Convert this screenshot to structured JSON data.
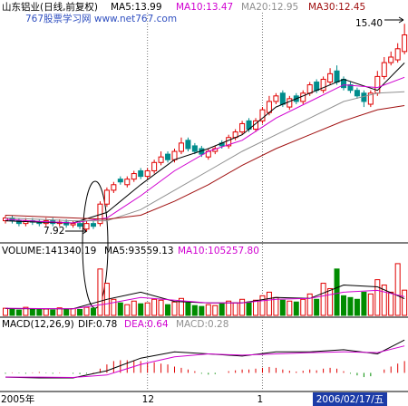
{
  "watermark": "767股票学习网 www.net767.com",
  "cursor_date": "2006/02/17/五",
  "chart_data": [
    {
      "type": "candlestick",
      "title": "山东铝业(日线,前复权)",
      "categories": [
        "2005年",
        null,
        null,
        null,
        null,
        null,
        null,
        null,
        null,
        null,
        null,
        null,
        null,
        null,
        null,
        null,
        null,
        null,
        null,
        null,
        null,
        "12",
        null,
        null,
        null,
        null,
        null,
        null,
        null,
        null,
        null,
        null,
        null,
        null,
        null,
        null,
        null,
        null,
        "1",
        null,
        null,
        null,
        null,
        null,
        null,
        null,
        null,
        null,
        null,
        null,
        null,
        null,
        null,
        null,
        null,
        null,
        null,
        null,
        null,
        null
      ],
      "open": [
        8.3,
        8.4,
        8.3,
        8.2,
        8.3,
        8.25,
        8.2,
        8.3,
        8.2,
        8.25,
        8.15,
        8.2,
        8.0,
        8.2,
        8.2,
        8.9,
        9.4,
        9.8,
        9.6,
        9.8,
        10.1,
        9.9,
        10.1,
        10.4,
        10.7,
        10.5,
        10.8,
        11.2,
        11.0,
        10.9,
        10.6,
        10.8,
        11.1,
        11.0,
        11.3,
        11.5,
        11.9,
        11.6,
        11.9,
        12.2,
        12.6,
        12.9,
        12.4,
        12.8,
        12.6,
        12.9,
        13.3,
        13.0,
        13.3,
        13.7,
        13.4,
        13.2,
        13.0,
        12.9,
        12.5,
        12.9,
        13.5,
        14.0,
        14.1,
        14.4
      ],
      "high": [
        8.5,
        8.5,
        8.4,
        8.4,
        8.4,
        8.35,
        8.4,
        8.4,
        8.35,
        8.35,
        8.3,
        8.3,
        8.3,
        8.3,
        9.0,
        9.5,
        9.7,
        9.9,
        9.9,
        10.1,
        10.2,
        10.2,
        10.5,
        10.8,
        10.8,
        10.9,
        11.3,
        11.3,
        11.1,
        11.0,
        10.9,
        11.0,
        11.2,
        11.4,
        11.6,
        11.9,
        12.0,
        12.0,
        12.4,
        12.8,
        12.9,
        13.0,
        12.8,
        12.9,
        13.0,
        13.3,
        13.4,
        13.5,
        13.8,
        13.9,
        13.5,
        13.3,
        13.1,
        13.0,
        13.0,
        13.7,
        14.2,
        14.4,
        14.7,
        15.4
      ],
      "low": [
        8.2,
        8.2,
        8.1,
        8.1,
        8.15,
        8.1,
        8.1,
        8.1,
        8.1,
        8.05,
        8.05,
        8.0,
        7.92,
        8.0,
        8.1,
        8.8,
        9.3,
        9.6,
        9.5,
        9.7,
        9.8,
        9.8,
        10.0,
        10.3,
        10.4,
        10.4,
        10.7,
        10.8,
        10.7,
        10.6,
        10.5,
        10.7,
        10.9,
        10.9,
        11.2,
        11.4,
        11.5,
        11.5,
        11.8,
        12.1,
        12.5,
        12.4,
        12.3,
        12.5,
        12.5,
        12.8,
        12.9,
        12.9,
        13.2,
        13.2,
        13.0,
        12.9,
        12.7,
        12.4,
        12.4,
        12.8,
        13.4,
        13.9,
        14.0,
        14.3
      ],
      "close": [
        8.4,
        8.3,
        8.2,
        8.3,
        8.25,
        8.2,
        8.3,
        8.2,
        8.25,
        8.15,
        8.2,
        8.1,
        8.2,
        8.1,
        8.9,
        9.4,
        9.6,
        9.7,
        9.8,
        10.0,
        9.9,
        10.1,
        10.4,
        10.6,
        10.5,
        10.8,
        11.1,
        10.9,
        10.8,
        10.7,
        10.8,
        10.9,
        11.0,
        11.3,
        11.5,
        11.8,
        11.6,
        11.9,
        12.3,
        12.6,
        12.8,
        12.5,
        12.7,
        12.6,
        12.9,
        13.2,
        13.0,
        13.4,
        13.6,
        13.3,
        13.1,
        13.0,
        12.8,
        12.6,
        12.9,
        13.5,
        14.0,
        14.2,
        14.5,
        15.0
      ],
      "up_color": "#e00000",
      "down_color": "#008c8c",
      "lines": [
        {
          "name": "MA5:13.99",
          "color": "#000000",
          "x": [
            0,
            5,
            10,
            15,
            20,
            25,
            30,
            35,
            40,
            45,
            50,
            55,
            59
          ],
          "values": [
            8.3,
            8.25,
            8.22,
            8.6,
            9.6,
            10.5,
            10.9,
            11.4,
            12.4,
            12.9,
            13.4,
            13.0,
            13.99
          ]
        },
        {
          "name": "MA10:13.47",
          "color": "#d000d0",
          "x": [
            0,
            5,
            10,
            15,
            20,
            25,
            30,
            35,
            40,
            45,
            50,
            55,
            59
          ],
          "values": [
            8.35,
            8.28,
            8.22,
            8.4,
            9.2,
            10.1,
            10.8,
            11.2,
            12.0,
            12.6,
            13.2,
            13.1,
            13.47
          ]
        },
        {
          "name": "MA20:12.95",
          "color": "#909090",
          "x": [
            0,
            5,
            10,
            15,
            20,
            25,
            30,
            35,
            40,
            45,
            50,
            55,
            59
          ],
          "values": [
            8.4,
            8.35,
            8.3,
            8.3,
            8.7,
            9.4,
            10.1,
            10.8,
            11.4,
            12.0,
            12.6,
            12.9,
            12.95
          ]
        },
        {
          "name": "MA30:12.45",
          "color": "#a01010",
          "x": [
            0,
            5,
            10,
            15,
            20,
            25,
            30,
            35,
            40,
            45,
            50,
            55,
            59
          ],
          "values": [
            8.5,
            8.45,
            8.4,
            8.35,
            8.5,
            9.0,
            9.6,
            10.3,
            10.9,
            11.4,
            11.9,
            12.3,
            12.45
          ]
        }
      ],
      "annotations": [
        "15.40",
        "7.92"
      ],
      "ylim": [
        7.6,
        15.8
      ]
    },
    {
      "type": "volume",
      "title": "VOLUME:141340.19",
      "values": [
        40000,
        35000,
        30000,
        45000,
        38000,
        32000,
        36000,
        30000,
        42000,
        35000,
        38000,
        33000,
        45000,
        40000,
        260000,
        180000,
        90000,
        70000,
        60000,
        80000,
        65000,
        70000,
        90000,
        85000,
        60000,
        75000,
        95000,
        70000,
        55000,
        50000,
        60000,
        55000,
        65000,
        80000,
        70000,
        90000,
        75000,
        85000,
        110000,
        130000,
        100000,
        85000,
        80000,
        75000,
        90000,
        120000,
        90000,
        180000,
        150000,
        260000,
        110000,
        100000,
        90000,
        130000,
        120000,
        200000,
        170000,
        130000,
        290000,
        141340.19
      ],
      "up_color": "#e00000",
      "down_color": "#008c00",
      "lines": [
        {
          "name": "MA5:93559.13",
          "color": "#000000",
          "x": [
            0,
            5,
            10,
            15,
            20,
            25,
            30,
            35,
            40,
            45,
            50,
            55,
            59
          ],
          "values": [
            38000,
            37000,
            37000,
            90000,
            130000,
            78000,
            70000,
            70000,
            100000,
            95000,
            170000,
            160000,
            93559.13
          ]
        },
        {
          "name": "MA10:105257.80",
          "color": "#d000d0",
          "x": [
            0,
            5,
            10,
            15,
            20,
            25,
            30,
            35,
            40,
            45,
            50,
            55,
            59
          ],
          "values": [
            40000,
            38000,
            37000,
            65000,
            100000,
            85000,
            70000,
            70000,
            90000,
            95000,
            130000,
            140000,
            105257.8
          ]
        }
      ],
      "ylim": [
        0,
        320000
      ]
    },
    {
      "type": "macd",
      "title": "MACD(12,26,9)",
      "lines": [
        {
          "name": "DIF:0.78",
          "color": "#000000",
          "x": [
            0,
            5,
            10,
            15,
            20,
            25,
            30,
            35,
            40,
            45,
            50,
            55,
            59
          ],
          "values": [
            -0.1,
            -0.12,
            -0.12,
            0.05,
            0.35,
            0.5,
            0.45,
            0.4,
            0.5,
            0.5,
            0.55,
            0.45,
            0.78
          ]
        },
        {
          "name": "DEA:0.64",
          "color": "#d000d0",
          "x": [
            0,
            5,
            10,
            15,
            20,
            25,
            30,
            35,
            40,
            45,
            50,
            55,
            59
          ],
          "values": [
            -0.1,
            -0.1,
            -0.11,
            -0.05,
            0.2,
            0.38,
            0.45,
            0.42,
            0.45,
            0.48,
            0.5,
            0.48,
            0.64
          ]
        }
      ],
      "histogram": {
        "name": "MACD:0.28",
        "color": "#909090",
        "up_color": "#e00000",
        "down_color": "#008c00",
        "values": [
          -0.02,
          0.01,
          -0.01,
          -0.02,
          0.01,
          0.02,
          -0.01,
          -0.02,
          0.01,
          0.0,
          -0.02,
          -0.03,
          -0.02,
          0.01,
          0.1,
          0.2,
          0.28,
          0.3,
          0.3,
          0.3,
          0.28,
          0.25,
          0.25,
          0.22,
          0.2,
          0.15,
          0.12,
          0.08,
          0.04,
          -0.02,
          -0.04,
          -0.03,
          0.0,
          0.04,
          0.06,
          0.08,
          0.08,
          0.1,
          0.12,
          0.14,
          0.12,
          0.08,
          0.05,
          0.03,
          0.05,
          0.08,
          0.06,
          0.1,
          0.12,
          0.1,
          0.04,
          -0.02,
          -0.06,
          -0.1,
          -0.08,
          0.0,
          0.08,
          0.15,
          0.22,
          0.28
        ]
      },
      "ylim": [
        -0.4,
        1.0
      ]
    }
  ]
}
